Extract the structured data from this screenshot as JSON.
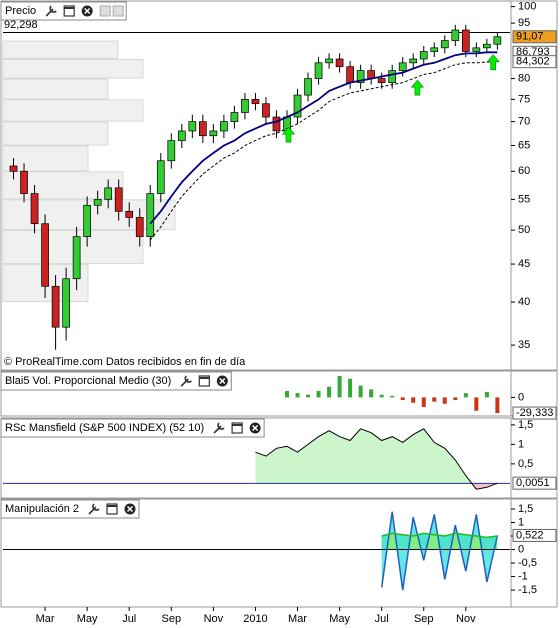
{
  "chart_data": [
    {
      "type": "candlestick",
      "title": "Precio",
      "x": [
        0.5,
        1,
        1.5,
        2,
        2.5,
        3,
        3.5,
        4,
        4.5,
        5,
        5.5,
        6,
        6.5,
        7,
        7.5,
        8,
        8.5,
        9,
        9.5,
        10,
        10.5,
        11,
        11.5,
        12,
        12.5,
        13,
        13.5,
        14,
        14.5,
        15,
        15.5,
        16,
        16.5,
        17,
        17.5,
        18,
        18.5,
        19,
        19.5,
        20,
        20.5,
        21,
        21.5,
        22,
        22.5,
        23,
        23.5
      ],
      "open": [
        61,
        60,
        56,
        51,
        42,
        37,
        43,
        49,
        54,
        55,
        57,
        53,
        52,
        49,
        56,
        62,
        66,
        68,
        70,
        67,
        68,
        70,
        72,
        75,
        74,
        71,
        68,
        71,
        76,
        80,
        84,
        85,
        83,
        79,
        82,
        80,
        79,
        82,
        84,
        85,
        87,
        88,
        90,
        93,
        87,
        88,
        89
      ],
      "high": [
        62.5,
        61.5,
        57.5,
        52.5,
        43.5,
        44.5,
        50.5,
        55.5,
        56.5,
        58.5,
        58.5,
        54.5,
        53.5,
        57.5,
        63.5,
        67.5,
        69.5,
        71.5,
        71.5,
        69.5,
        71.5,
        73.5,
        76.5,
        76.5,
        75.5,
        72.5,
        72.5,
        77.5,
        81.5,
        85.5,
        86.5,
        86.5,
        84.5,
        83.5,
        83.5,
        81.5,
        83.5,
        85.5,
        86.5,
        88.5,
        89.5,
        91.5,
        94.5,
        94.5,
        89.5,
        90.5,
        92.3
      ],
      "low": [
        58.5,
        54.5,
        49.5,
        40.5,
        34.5,
        35.5,
        41.5,
        47.5,
        52.5,
        53.5,
        51.5,
        50.5,
        47.5,
        47.5,
        54.5,
        60.5,
        64.5,
        66.5,
        65.5,
        65.5,
        66.5,
        68.5,
        70.5,
        72.5,
        69.5,
        66.5,
        66.5,
        69.5,
        74.5,
        78.5,
        82.5,
        81.5,
        77.5,
        77.5,
        78.5,
        77.5,
        77.5,
        80.5,
        82.5,
        83.5,
        85.5,
        86.5,
        88.5,
        85.5,
        85.5,
        86.5,
        87.5
      ],
      "close": [
        60,
        56,
        51,
        42,
        37,
        43,
        49,
        54,
        55,
        57,
        53,
        52,
        49,
        56,
        62,
        66,
        68,
        70,
        67,
        68,
        70,
        72,
        75,
        74,
        71,
        68,
        71,
        76,
        80,
        84,
        85,
        83,
        79,
        82,
        80,
        79,
        82,
        84,
        85,
        87,
        88,
        90,
        93,
        87,
        88,
        89,
        91.07
      ],
      "close_label": "91,07",
      "close_label_color": "#f0a020",
      "up_color": "#33cc33",
      "down_color": "#cc2222",
      "log_scale": true,
      "ylim": [
        32.6,
        100.5
      ],
      "yticks": [
        35,
        40,
        45,
        50,
        55,
        60,
        65,
        70,
        75,
        80,
        95,
        100
      ],
      "xlim": [
        0,
        24.1
      ],
      "xticks": [
        {
          "value": 2,
          "label": "Mar"
        },
        {
          "value": 4,
          "label": "May"
        },
        {
          "value": 6,
          "label": "Jul"
        },
        {
          "value": 8,
          "label": "Sep"
        },
        {
          "value": 10,
          "label": "Nov"
        },
        {
          "value": 12,
          "label": "2010"
        },
        {
          "value": 14,
          "label": "Mar"
        },
        {
          "value": 16,
          "label": "May"
        },
        {
          "value": 18,
          "label": "Jul"
        },
        {
          "value": 20,
          "label": "Sep"
        },
        {
          "value": 22,
          "label": "Nov"
        }
      ],
      "reference_line": {
        "value": 92.298,
        "label": "92,298"
      },
      "series": [
        {
          "color": "#000080",
          "values": [
            null,
            null,
            null,
            null,
            null,
            null,
            null,
            null,
            null,
            null,
            null,
            null,
            null,
            51,
            53,
            55.5,
            58,
            60,
            62,
            63.5,
            65,
            66,
            67.5,
            68.5,
            69.5,
            70,
            71,
            72,
            73.5,
            75,
            77,
            78,
            79,
            79.5,
            80,
            80.5,
            81,
            81.5,
            82.5,
            83.5,
            84,
            85,
            86,
            86.5,
            86.5,
            86.8,
            86.793
          ],
          "value_label": "86,793"
        },
        {
          "color": "#000000",
          "dash": true,
          "values": [
            null,
            null,
            null,
            null,
            null,
            null,
            null,
            null,
            null,
            null,
            null,
            null,
            null,
            48.5,
            50.5,
            53,
            55.5,
            57.5,
            59.5,
            61,
            62.5,
            63.5,
            65,
            66,
            67,
            67.5,
            68.5,
            69.5,
            71,
            72.5,
            74.5,
            75.5,
            76.5,
            77,
            77.5,
            78,
            78.5,
            79,
            80,
            81,
            81.5,
            82.5,
            83.5,
            84,
            84,
            84.2,
            84.302
          ],
          "value_label": "84,302"
        }
      ],
      "signals": {
        "x": [
          13.57,
          19.7,
          23.3
        ],
        "y": [
          68.8,
          79.6,
          86.1
        ],
        "color": "#00ee00"
      },
      "volume_profile": {
        "bins": [
          40,
          45,
          50,
          55,
          60,
          65,
          70,
          75,
          80,
          85,
          90
        ],
        "values": [
          85,
          140,
          172,
          120,
          85,
          105,
          140,
          105,
          140,
          115
        ],
        "color": "#f0f0f0"
      },
      "annotation": "© ProRealTime.com  Datos recibidos en fin de día"
    },
    {
      "type": "bar",
      "title": "Blai5 Vol. Proporcional Medio (30)",
      "x": [
        13.5,
        14,
        14.5,
        15,
        15.5,
        16,
        16.5,
        17,
        17.5,
        18,
        18.5,
        19,
        19.5,
        20,
        20.5,
        21,
        21.5,
        22,
        22.5,
        23,
        23.5
      ],
      "values": [
        12,
        8,
        5,
        12,
        20,
        40,
        35,
        22,
        15,
        5,
        3,
        -5,
        -10,
        -18,
        -8,
        -12,
        -5,
        8,
        -25,
        10,
        -29.333
      ],
      "positive_color": "#33aa33",
      "negative_color": "#cc3311",
      "ylim": [
        -33,
        42
      ],
      "yticks": [
        0
      ],
      "value_label": "-29,333",
      "label_color": "#cc0000"
    },
    {
      "type": "area",
      "title": "RSc Mansfield (S&P 500 INDEX) (52 10)",
      "x": [
        12,
        12.5,
        13,
        13.5,
        14,
        14.5,
        15,
        15.5,
        16,
        16.5,
        17,
        17.5,
        18,
        18.5,
        19,
        19.5,
        20,
        20.5,
        21,
        21.5,
        22,
        22.5,
        23,
        23.5
      ],
      "values": [
        0.8,
        0.7,
        0.9,
        0.95,
        0.8,
        1.0,
        1.2,
        1.35,
        1.2,
        1.1,
        1.4,
        1.3,
        1.1,
        1.2,
        1.05,
        1.25,
        1.4,
        1.05,
        0.9,
        0.6,
        0.2,
        -0.15,
        -0.1,
        0.0051
      ],
      "color": "#000000",
      "positive_fill": "#ccf5cc",
      "negative_fill": "#f5c0d0",
      "zero_line_color": "#203090",
      "ylim": [
        -0.35,
        1.6
      ],
      "yticks": [
        {
          "value": 1.5,
          "label": "1,5"
        },
        1,
        {
          "value": 0.5,
          "label": "0,5"
        }
      ],
      "value_label": "0,0051",
      "label_color": "#000000"
    },
    {
      "type": "line",
      "title": "Manipulación 2",
      "x": [
        18,
        18.5,
        19,
        19.5,
        20,
        20.5,
        21,
        21.5,
        22,
        22.5,
        23,
        23.5
      ],
      "series": [
        {
          "color": "#2060c0",
          "values": [
            -1.4,
            1.4,
            -1.5,
            1.2,
            -0.4,
            1.3,
            -1.1,
            0.9,
            -0.8,
            1.3,
            -1.2,
            0.522
          ],
          "value_label": "0,522"
        },
        {
          "color": "#22bb22",
          "values": [
            0.5,
            0.6,
            0.55,
            0.5,
            0.6,
            0.55,
            0.5,
            0.6,
            0.55,
            0.5,
            0.45,
            0.5
          ]
        }
      ],
      "band_fill": "#40e0e0",
      "area_fill": "#80ee80",
      "zero_line_color": "#000000",
      "label_color": "#00aacc",
      "ylim": [
        -2.09,
        1.76
      ],
      "yticks": [
        {
          "value": 1.5,
          "label": "1,5"
        },
        1,
        {
          "value": 0.5,
          "label": "0,5"
        },
        0,
        {
          "value": -0.5,
          "label": "-0,5"
        },
        -1,
        {
          "value": -1.5,
          "label": "-1,5"
        }
      ]
    }
  ]
}
